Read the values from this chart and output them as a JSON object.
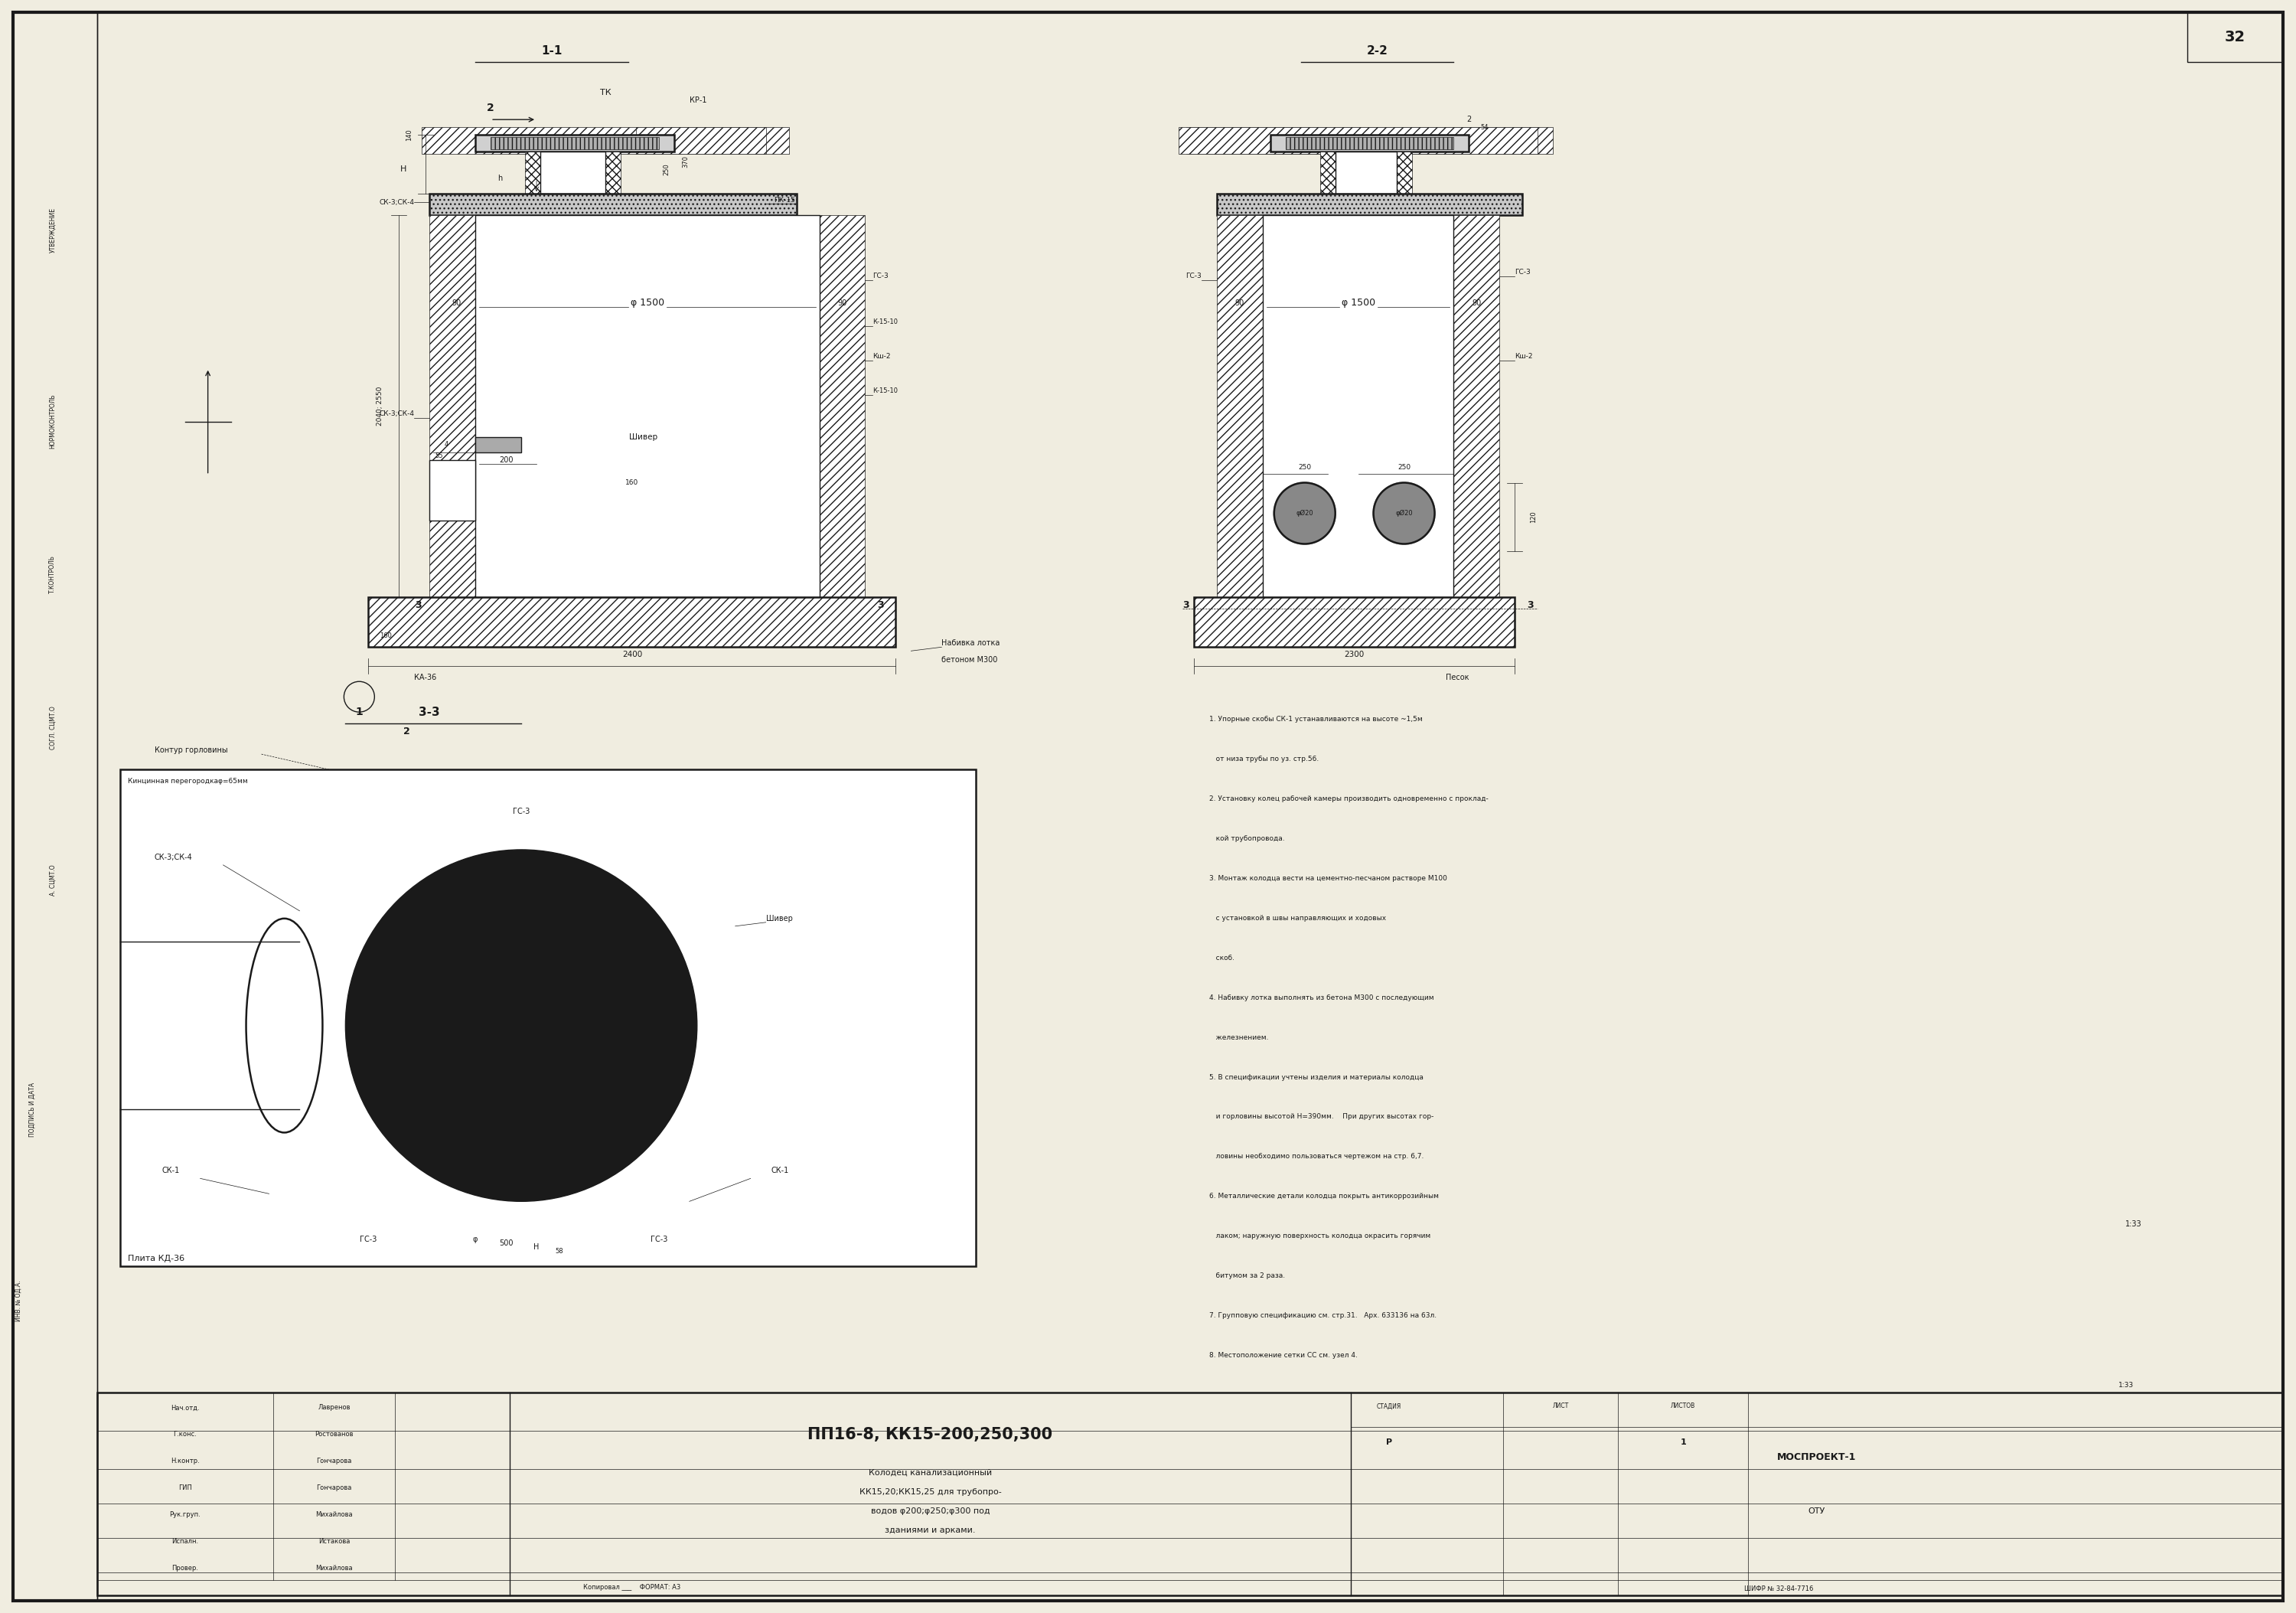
{
  "bg_color": "#ffffff",
  "page_color": "#f0ede0",
  "line_color": "#1a1a1a",
  "title_num": "32",
  "drawing_title": "ПП16-8, КК15-200,250,300",
  "desc1": "Колодец канализационный",
  "desc2": "КК15,20;КК15,25 для трубопро-",
  "desc3": "водов φ200;φ250;φ300 под",
  "desc4": "зданиями и арками.",
  "org1": "МОСПРОЕКТ-1",
  "org2": "ОТУ",
  "cipher": "ШИФР № 32-84-7716",
  "scale": "1:33",
  "notes": [
    "1. Упорные скобы СК-1 устанавливаются на высоте ~1,5м",
    "   от низа трубы по уз. стр.56.",
    "2. Установку колец рабочей камеры производить одновременно с проклад-",
    "   кой трубопровода.",
    "3. Монтаж колодца вести на цементно-песчаном растворе М100",
    "   с установкой в швы направляющих и ходовых",
    "   скоб.",
    "4. Набивку лотка выполнять из бетона М300 с последующим",
    "   железнением.",
    "5. В спецификации учтены изделия и материалы колодца",
    "   и горловины высотой Н=390мм.    При других высотах гор-",
    "   ловины необходимо пользоваться чертежом на стр. 6,7.",
    "6. Металлические детали колодца покрыть антикоррозийным",
    "   лаком; наружную поверхность колодца окрасить горячим",
    "   битумом за 2 раза.",
    "7. Групповую спецификацию см. стр.31.   Арх. 633136 на 63л.",
    "8. Местоположение сетки СС см. узел 4."
  ],
  "personnel": [
    [
      "Нач.отд.",
      "Лавренов"
    ],
    [
      "Г.конс.",
      "Ростованов"
    ],
    [
      "Н.контр.",
      "Гончарова"
    ],
    [
      "ГИП",
      "Гончарова"
    ],
    [
      "Рук.груп.",
      "Михайлова"
    ],
    [
      "Испалн.",
      "Истакова"
    ],
    [
      "Провер.",
      "Михайлова"
    ]
  ]
}
